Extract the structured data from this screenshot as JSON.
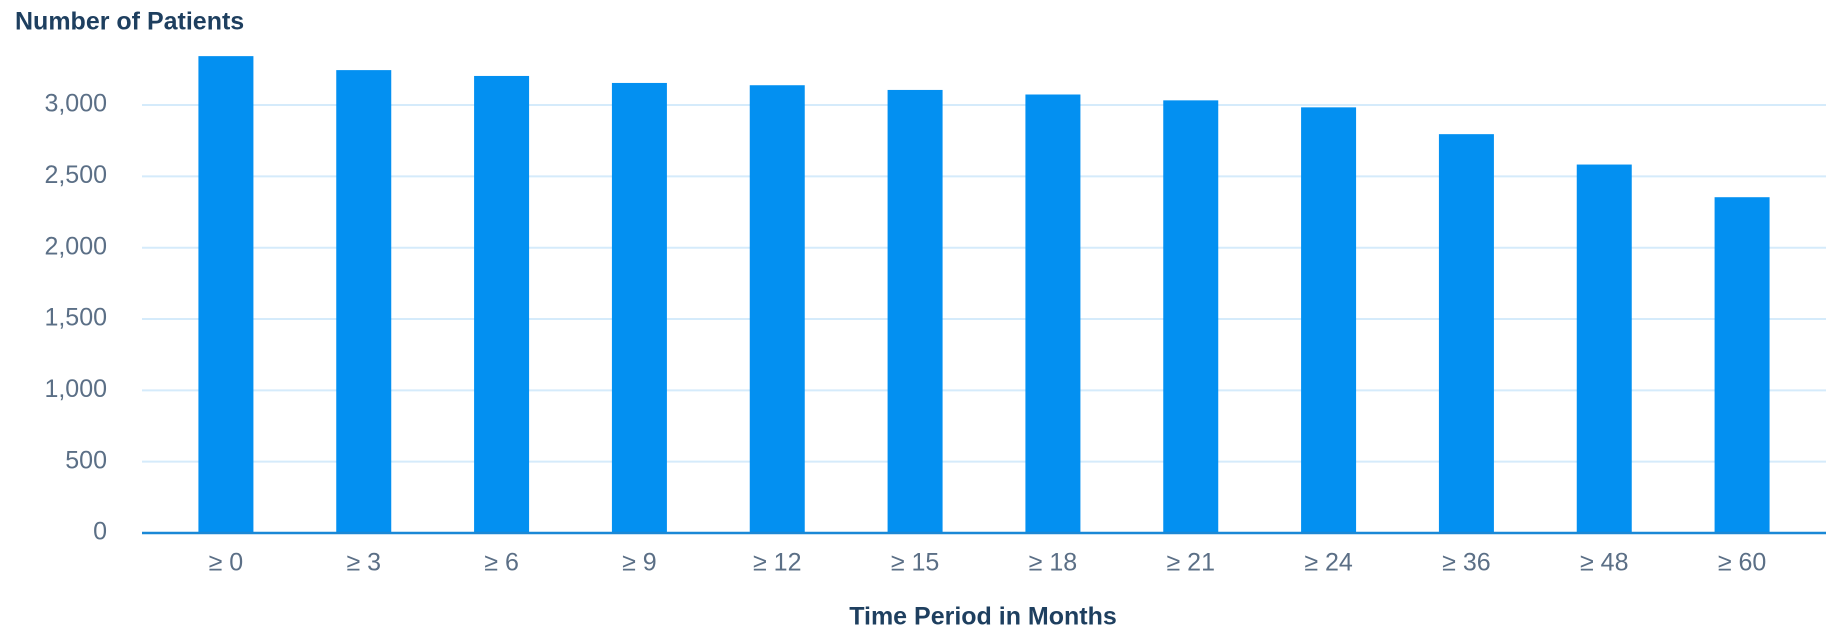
{
  "chart_data": {
    "type": "bar",
    "title": "Number of Patients",
    "x_label": "Time Period in Months",
    "categories": [
      "≥ 0",
      "≥ 3",
      "≥ 6",
      "≥ 9",
      "≥ 12",
      "≥ 15",
      "≥ 18",
      "≥ 21",
      "≥ 24",
      "≥ 36",
      "≥ 48",
      "≥ 60"
    ],
    "values": [
      3343,
      3245,
      3204,
      3155,
      3139,
      3106,
      3074,
      3033,
      2984,
      2796,
      2583,
      2354
    ],
    "color": "#0390f1",
    "ylim": [
      0,
      3400
    ],
    "yticks": [
      0,
      500,
      {
        "value": 1000,
        "label": "1,000"
      },
      {
        "value": 1500,
        "label": "1,500"
      },
      {
        "value": 2000,
        "label": "2,000"
      },
      {
        "value": 2500,
        "label": "2,500"
      },
      {
        "value": 3000,
        "label": "3,000"
      }
    ],
    "grid": true
  }
}
